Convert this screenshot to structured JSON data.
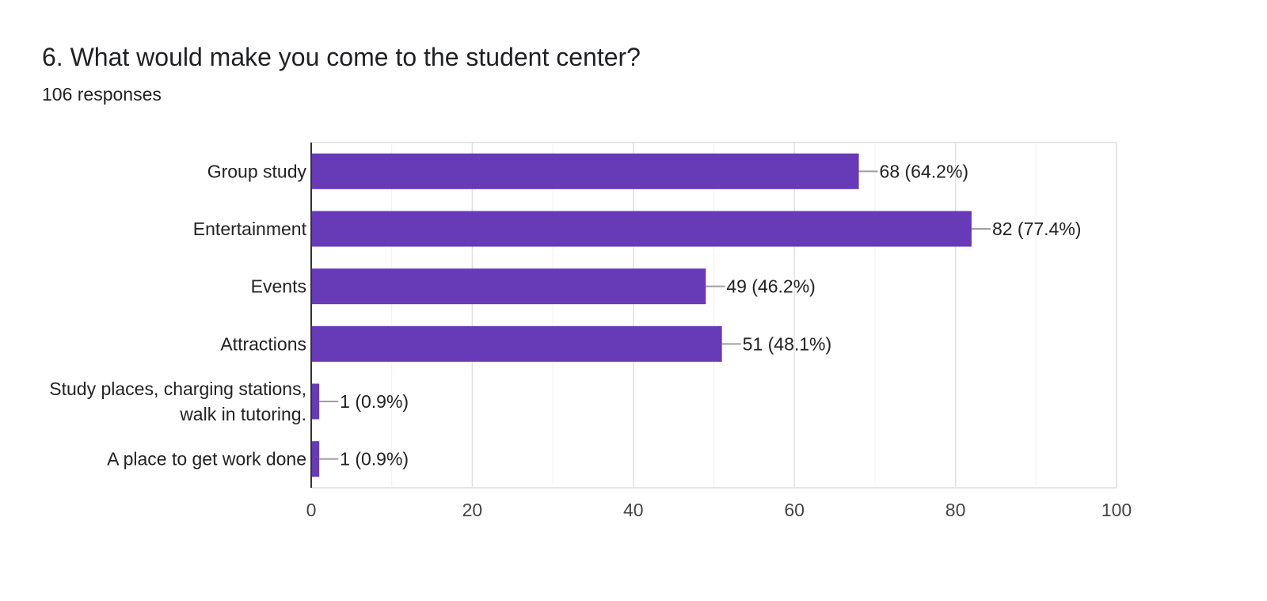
{
  "question": {
    "title": "6. What would make you come to the student center?",
    "responses": "106 responses"
  },
  "chart_data": {
    "type": "bar",
    "orientation": "horizontal",
    "categories": [
      [
        "Group study"
      ],
      [
        "Entertainment"
      ],
      [
        "Events"
      ],
      [
        "Attractions"
      ],
      [
        "Study places, charging stations,",
        "walk in tutoring."
      ],
      [
        "A place to get work done"
      ]
    ],
    "values": [
      68,
      82,
      49,
      51,
      1,
      1
    ],
    "data_labels": [
      "68 (64.2%)",
      "82 (77.4%)",
      "49 (46.2%)",
      "51 (48.1%)",
      "1 (0.9%)",
      "1 (0.9%)"
    ],
    "xlim": [
      0,
      100
    ],
    "xticks": [
      0,
      20,
      40,
      60,
      80,
      100
    ],
    "grid": true,
    "bar_color": "#673ab7"
  }
}
